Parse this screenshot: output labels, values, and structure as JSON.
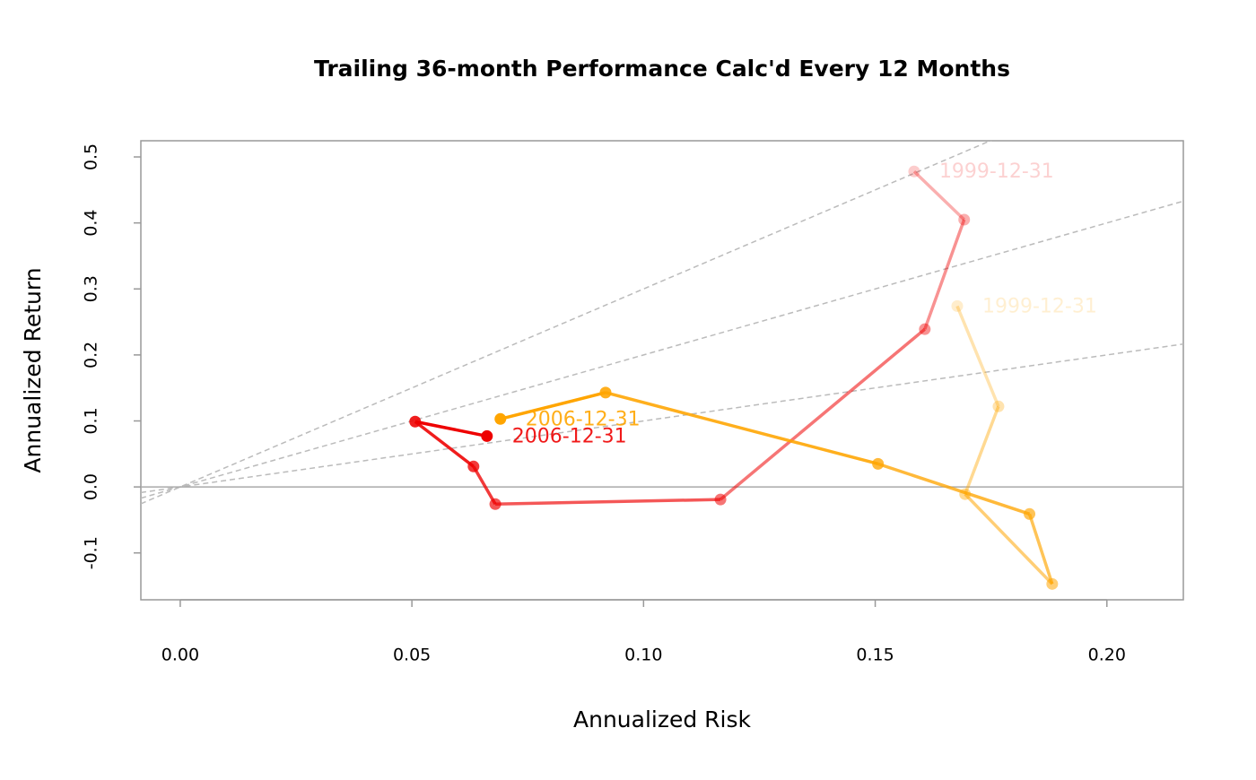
{
  "chart_data": {
    "type": "snail-trail",
    "title": "Trailing 36-month Performance Calc'd Every 12 Months",
    "x_label": "Annualized Risk",
    "y_label": "Annualized Return",
    "xlim": [
      -0.0085,
      0.2165
    ],
    "ylim": [
      -0.171,
      0.5245
    ],
    "xticks": [
      {
        "value": 0,
        "label": "0.00"
      },
      {
        "value": 0.05,
        "label": "0.05"
      },
      {
        "value": 0.1,
        "label": "0.10"
      },
      {
        "value": 0.15,
        "label": "0.15"
      },
      {
        "value": 0.2,
        "label": "0.20"
      }
    ],
    "yticks": [
      -0.1,
      {
        "value": 0,
        "label": "0.0"
      },
      0.1,
      0.2,
      0.3,
      0.4,
      0.5
    ],
    "hline": 0,
    "reference_slopes": [
      1,
      2,
      3
    ],
    "series": [
      {
        "color": "#ee0000",
        "x": [
          0.1584,
          0.1692,
          0.1607,
          0.1166,
          0.068,
          0.0633,
          0.0507,
          0.0662
        ],
        "values": [
          0.478,
          0.405,
          0.239,
          -0.019,
          -0.026,
          0.031,
          0.099,
          0.077
        ],
        "point_labels": [
          "1999-12-31",
          null,
          null,
          null,
          null,
          null,
          null,
          "2006-12-31"
        ]
      },
      {
        "color": "#ffa500",
        "x": [
          0.1677,
          0.1766,
          0.1694,
          0.1882,
          0.1833,
          0.1506,
          0.0918,
          0.0691
        ],
        "values": [
          0.274,
          0.122,
          -0.011,
          -0.147,
          -0.041,
          0.035,
          0.143,
          0.103
        ],
        "point_labels": [
          "1999-12-31",
          null,
          null,
          null,
          null,
          null,
          null,
          "2006-12-31"
        ]
      }
    ]
  }
}
